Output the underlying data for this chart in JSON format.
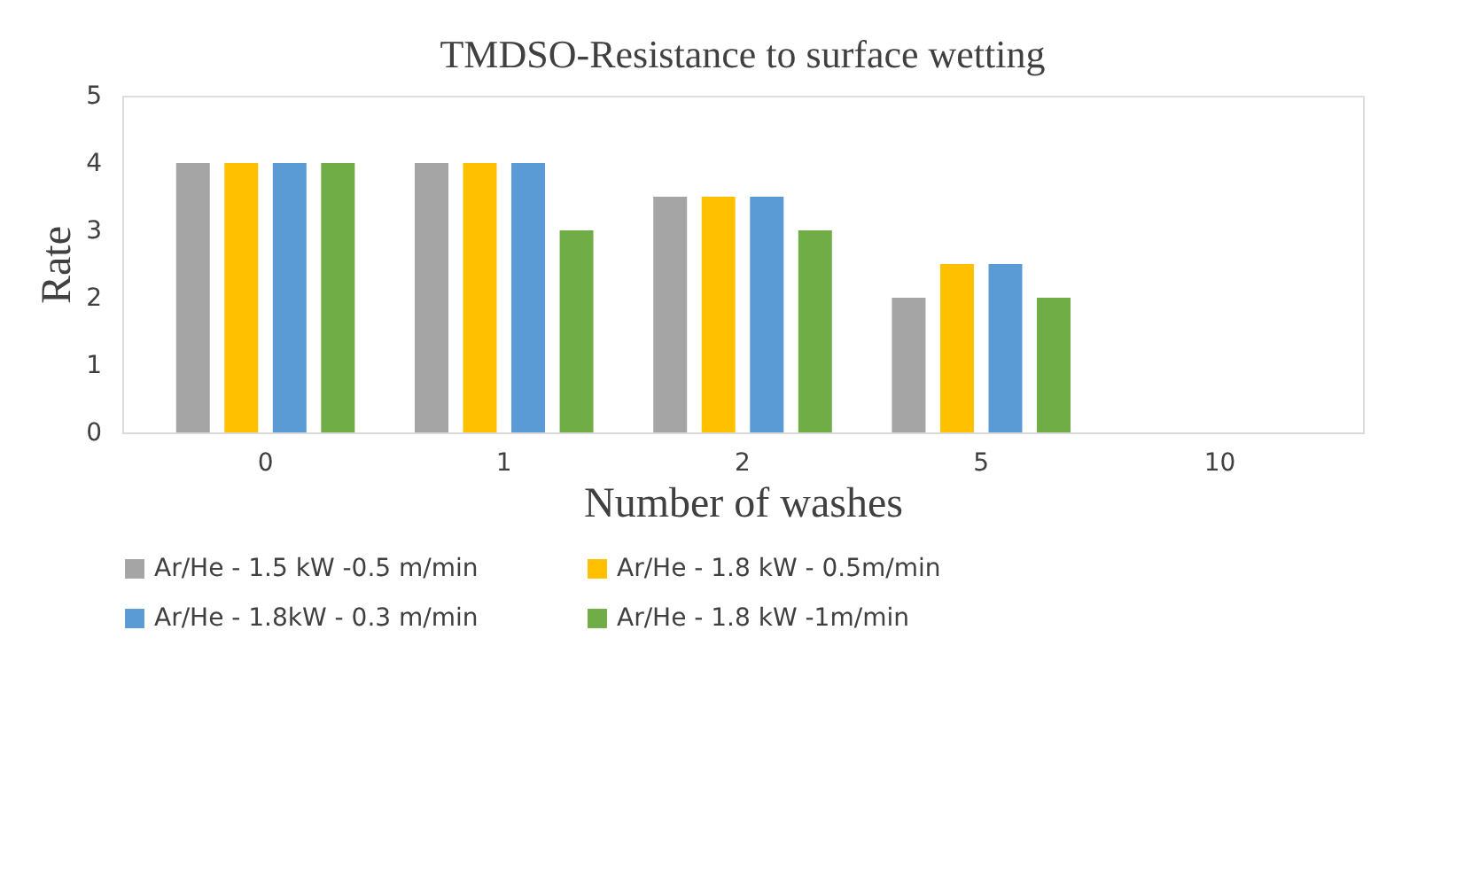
{
  "chart_data": {
    "type": "bar",
    "title": "TMDSO-Resistance to surface wetting",
    "xlabel": "Number of washes",
    "ylabel": "Rate",
    "categories": [
      "0",
      "1",
      "2",
      "5",
      "10"
    ],
    "series": [
      {
        "name": "Ar/He - 1.5 kW -0.5 m/min",
        "color": "#a5a5a5",
        "values": [
          4,
          4,
          3.5,
          2,
          0
        ]
      },
      {
        "name": "Ar/He - 1.8 kW - 0.5m/min",
        "color": "#ffc000",
        "values": [
          4,
          4,
          3.5,
          2.5,
          0
        ]
      },
      {
        "name": "Ar/He - 1.8kW - 0.3 m/min",
        "color": "#5b9bd5",
        "values": [
          4,
          4,
          3.5,
          2.5,
          0
        ]
      },
      {
        "name": "Ar/He - 1.8 kW -1m/min",
        "color": "#70ad47",
        "values": [
          4,
          3,
          3,
          2,
          0
        ]
      }
    ],
    "ylim": [
      0,
      5
    ],
    "yticks": [
      0,
      1,
      2,
      3,
      4,
      5
    ],
    "grid": false,
    "legend": "bottom"
  }
}
